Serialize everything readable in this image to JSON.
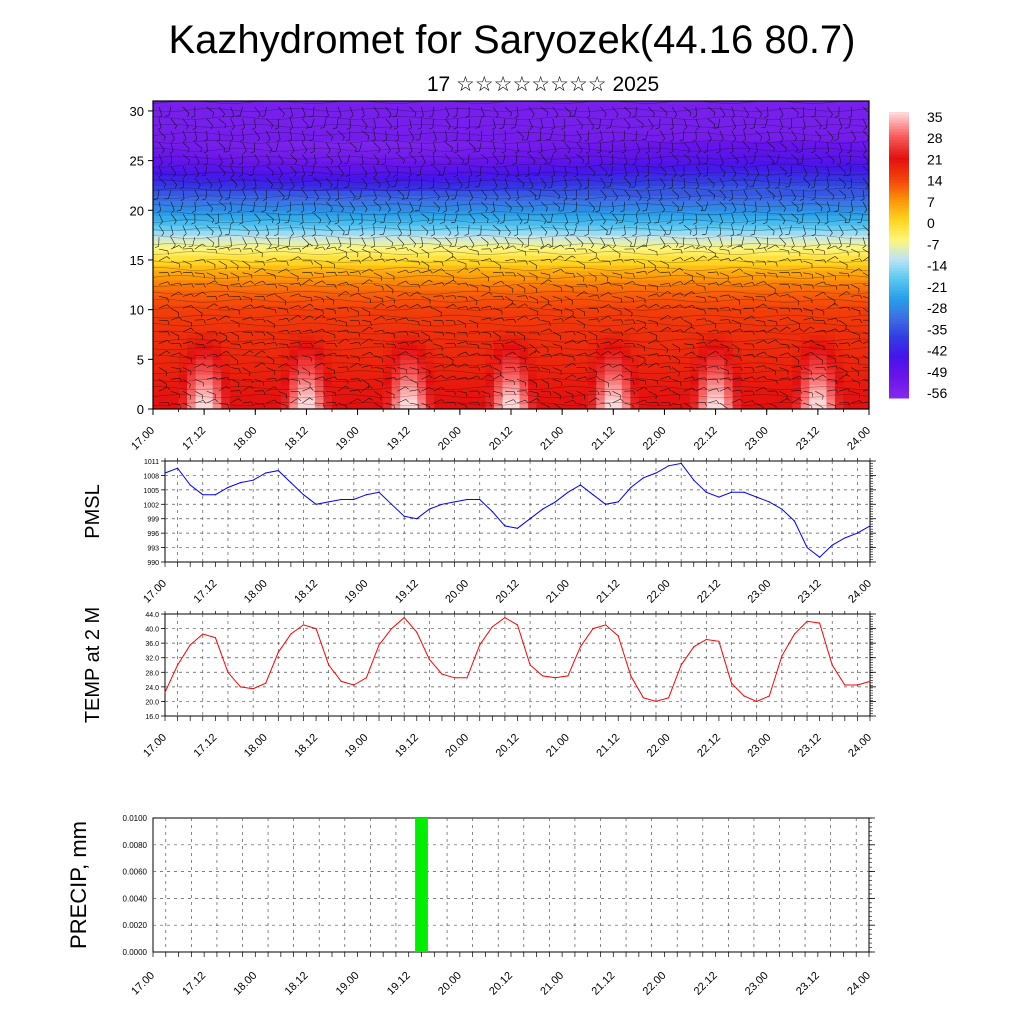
{
  "title": "Kazhydromet for Saryozek(44.16 80.7)",
  "subtitle": "17 ☆☆☆☆☆☆☆☆ 2025",
  "time_ticks": [
    "17.00",
    "17.12",
    "18.00",
    "18.12",
    "19.00",
    "19.12",
    "20.00",
    "20.12",
    "21.00",
    "21.12",
    "22.00",
    "22.12",
    "23.00",
    "23.12",
    "24.00"
  ],
  "chart_data": [
    {
      "type": "heatmap",
      "title": "",
      "xlabel": "",
      "ylabel": "",
      "yticks": [
        0,
        5,
        10,
        15,
        20,
        25,
        30
      ],
      "ylim": [
        0,
        31
      ],
      "colorbar_labels": [
        "35",
        "28",
        "21",
        "14",
        "7",
        "0",
        "-7",
        "-14",
        "-21",
        "-28",
        "-35",
        "-42",
        "-49",
        "-56"
      ],
      "colorbar_range": [
        -63,
        38
      ],
      "profile": {
        "height_km": [
          0,
          2,
          4,
          6,
          8,
          10,
          12,
          14,
          15.5,
          17,
          18.5,
          20,
          21.5,
          23,
          24.5,
          25.5,
          27,
          29,
          31
        ],
        "temp_c": [
          26,
          24,
          21,
          19,
          17,
          15,
          11,
          4,
          -4,
          -11,
          -22,
          -30,
          -37,
          -45,
          -52,
          -56,
          -59,
          -60,
          -60
        ]
      },
      "diurnal_amplitude_c": 15,
      "overlay": "wind barbs"
    },
    {
      "type": "line",
      "ylabel": "PMSL",
      "yticks": [
        "1011",
        "1008",
        "1005",
        "1002",
        "999",
        "996",
        "993",
        "990"
      ],
      "ylim": [
        990,
        1011
      ],
      "line_color": "#0000ff",
      "x": [
        0,
        3,
        6,
        9,
        12,
        15,
        18,
        21,
        24,
        27,
        30,
        33,
        36,
        39,
        42,
        45,
        48,
        51,
        54,
        57,
        60,
        63,
        66,
        69,
        72,
        75,
        78,
        81,
        84,
        87,
        90,
        93,
        96,
        99,
        102,
        105,
        108,
        111,
        114,
        117,
        120,
        123,
        126,
        129,
        132,
        135,
        138,
        141,
        144,
        147,
        150,
        153,
        156,
        159,
        162,
        165,
        168
      ],
      "values": [
        1008.5,
        1009.5,
        1006,
        1004,
        1004,
        1005.5,
        1006.5,
        1007,
        1008.5,
        1009,
        1006.5,
        1004,
        1002,
        1002.5,
        1003,
        1003,
        1004,
        1004.5,
        1002,
        999.5,
        999,
        1001,
        1002,
        1002.5,
        1003,
        1003,
        1000.5,
        997.5,
        997,
        999,
        1001,
        1002.5,
        1004.5,
        1006,
        1004,
        1002,
        1002.5,
        1005.5,
        1007.5,
        1008.5,
        1010,
        1010.5,
        1007,
        1004.5,
        1003.5,
        1004.5,
        1004.5,
        1003.5,
        1002.5,
        1001,
        998.5,
        993,
        991,
        993.5,
        995,
        996,
        997.5
      ]
    },
    {
      "type": "line",
      "ylabel": "TEMP at 2 M",
      "yticks": [
        "44.0",
        "40.0",
        "36.0",
        "32.0",
        "28.0",
        "24.0",
        "20.0",
        "16.0"
      ],
      "ylim": [
        16,
        44
      ],
      "line_color": "#ff0000",
      "x": [
        0,
        3,
        6,
        9,
        12,
        15,
        18,
        21,
        24,
        27,
        30,
        33,
        36,
        39,
        42,
        45,
        48,
        51,
        54,
        57,
        60,
        63,
        66,
        69,
        72,
        75,
        78,
        81,
        84,
        87,
        90,
        93,
        96,
        99,
        102,
        105,
        108,
        111,
        114,
        117,
        120,
        123,
        126,
        129,
        132,
        135,
        138,
        141,
        144,
        147,
        150,
        153,
        156,
        159,
        162,
        165,
        168
      ],
      "values": [
        22.5,
        30,
        35.5,
        38.5,
        37.5,
        28,
        24,
        23.5,
        25,
        33.5,
        38.5,
        41,
        40,
        30,
        25.5,
        24.5,
        26.5,
        35.5,
        40,
        43,
        39,
        31.5,
        27.5,
        26.5,
        26.5,
        35.5,
        40.5,
        43,
        41,
        30,
        27,
        26.5,
        27,
        35,
        40,
        41,
        38,
        27,
        21,
        20,
        21,
        30,
        35,
        37,
        36.5,
        25,
        21.5,
        20,
        21.5,
        32.5,
        38.5,
        42,
        41.5,
        30,
        24.5,
        24.5,
        25.5
      ]
    },
    {
      "type": "bar",
      "ylabel": "PRECIP, mm",
      "yticks": [
        "0.0100",
        "0.0080",
        "0.0060",
        "0.0040",
        "0.0020",
        "0.0000"
      ],
      "ylim": [
        0,
        0.01
      ],
      "bar_color": "#00ee00",
      "x": [
        63
      ],
      "values": [
        0.01
      ]
    }
  ]
}
